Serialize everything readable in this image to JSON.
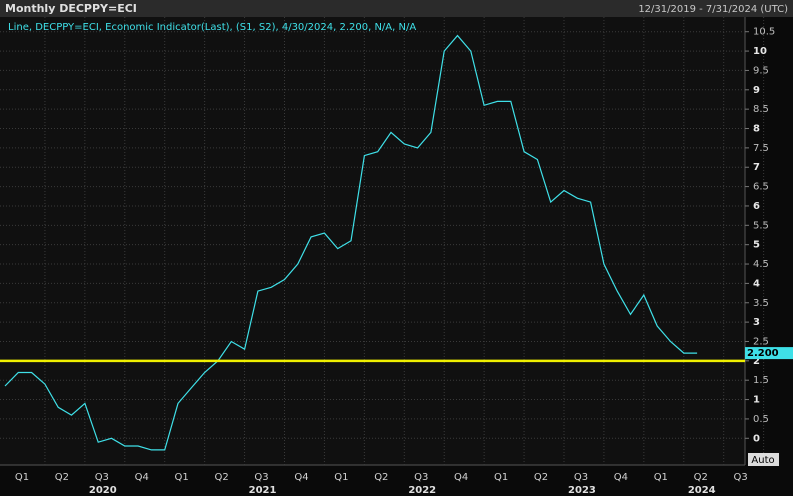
{
  "chart_data": {
    "type": "line",
    "title": "Monthly DECPPY=ECI",
    "date_range": "12/31/2019 - 7/31/2024 (UTC)",
    "legend_text": "Line, DECPPY=ECI, Economic Indicator(Last), (S1, S2), 4/30/2024, 2.200, N/A, N/A",
    "auto_button": "Auto",
    "categories": [
      null,
      null,
      null,
      null,
      null,
      null,
      null,
      null,
      null,
      null,
      null,
      null,
      null,
      null,
      null,
      null,
      null,
      null,
      null,
      null,
      null,
      null,
      null,
      null,
      null,
      null,
      null,
      null,
      null,
      null,
      null,
      null,
      null,
      null,
      null,
      null,
      null,
      null,
      null,
      null,
      null,
      null,
      null,
      null,
      null,
      null,
      null,
      null,
      null,
      null,
      null,
      null,
      null
    ],
    "series": [
      {
        "name": "DECPPY=ECI",
        "color": "#3fe0e8",
        "values": [
          1.35,
          1.7,
          1.7,
          1.4,
          0.8,
          0.6,
          0.9,
          -0.1,
          0.0,
          -0.2,
          -0.2,
          -0.3,
          -0.3,
          0.9,
          1.3,
          1.7,
          2.0,
          2.5,
          2.3,
          3.8,
          3.9,
          4.1,
          4.5,
          5.2,
          5.3,
          4.9,
          5.1,
          7.3,
          7.4,
          7.9,
          7.6,
          7.5,
          7.9,
          10.0,
          10.4,
          10.0,
          8.6,
          8.7,
          8.7,
          7.4,
          7.2,
          6.1,
          6.4,
          6.2,
          6.1,
          4.5,
          3.8,
          3.2,
          3.7,
          2.9,
          2.5,
          2.2,
          2.2
        ]
      }
    ],
    "last_value": 2.2,
    "last_value_label": "2.200",
    "reference_line": {
      "value": 2,
      "color": "#f0f000"
    },
    "xlim": [
      0,
      55.6
    ],
    "xticks": [
      {
        "value": 1.5,
        "label": "Q1"
      },
      {
        "value": 4.5,
        "label": "Q2"
      },
      {
        "value": 7.5,
        "label": "Q3"
      },
      {
        "value": 10.5,
        "label": "Q4"
      },
      {
        "value": 13.5,
        "label": "Q1"
      },
      {
        "value": 16.5,
        "label": "Q2"
      },
      {
        "value": 19.5,
        "label": "Q3"
      },
      {
        "value": 22.5,
        "label": "Q4"
      },
      {
        "value": 25.5,
        "label": "Q1"
      },
      {
        "value": 28.5,
        "label": "Q2"
      },
      {
        "value": 31.5,
        "label": "Q3"
      },
      {
        "value": 34.5,
        "label": "Q4"
      },
      {
        "value": 37.5,
        "label": "Q1"
      },
      {
        "value": 40.5,
        "label": "Q2"
      },
      {
        "value": 43.5,
        "label": "Q3"
      },
      {
        "value": 46.5,
        "label": "Q4"
      },
      {
        "value": 49.5,
        "label": "Q1"
      },
      {
        "value": 52.5,
        "label": "Q2"
      },
      {
        "value": 55.5,
        "label": "Q3"
      }
    ],
    "year_ticks": [
      {
        "value": 7.5,
        "label": "2020"
      },
      {
        "value": 19.5,
        "label": "2021"
      },
      {
        "value": 31.5,
        "label": "2022"
      },
      {
        "value": 43.5,
        "label": "2023"
      },
      {
        "value": 52.5,
        "label": "2024"
      }
    ],
    "ylim": [
      -0.69,
      10.88
    ],
    "yticks": [
      0,
      0.5,
      1,
      1.5,
      2,
      2.5,
      3,
      3.5,
      4,
      4.5,
      5,
      5.5,
      6,
      6.5,
      7,
      7.5,
      8,
      8.5,
      9,
      9.5,
      10,
      10.5
    ],
    "grid": true
  }
}
